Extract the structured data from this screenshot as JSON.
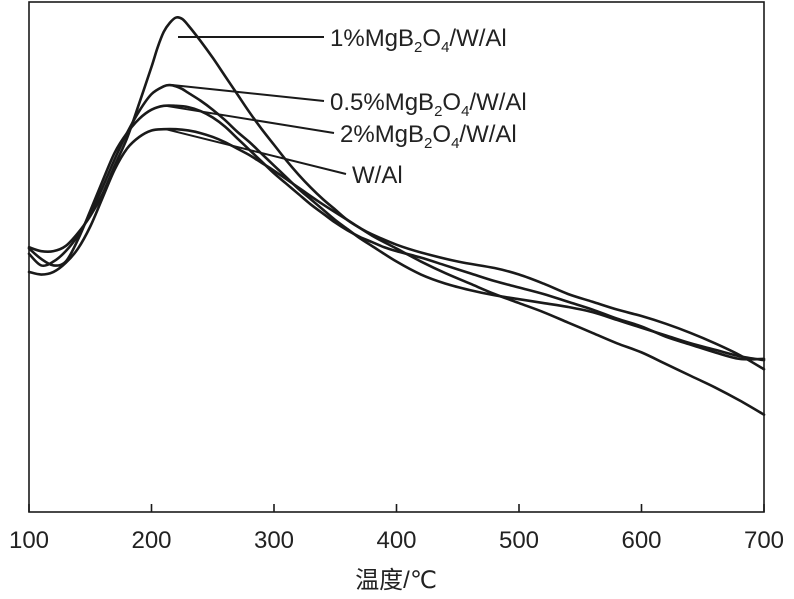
{
  "chart_data": {
    "type": "line",
    "title": "",
    "xlabel": "温度/℃",
    "ylabel": "",
    "xlim": [
      100,
      700
    ],
    "xticks": [
      100,
      200,
      300,
      400,
      500,
      600,
      700
    ],
    "grid": false,
    "y_axis_shown": false,
    "legend_placement": "labels with leader lines at curve peaks",
    "series": [
      {
        "name": "1%MgB2O4/W/Al",
        "label_parts": [
          "1%MgB",
          "2",
          "O",
          "4",
          "/W/Al"
        ],
        "color": "#1a1a1a",
        "x": [
          100,
          110,
          120,
          130,
          140,
          150,
          160,
          170,
          180,
          190,
          200,
          205,
          210,
          215,
          220,
          225,
          230,
          240,
          250,
          260,
          270,
          280,
          290,
          300,
          310,
          320,
          330,
          340,
          350,
          360,
          370,
          380,
          400,
          420,
          450,
          480,
          500,
          520,
          540,
          560,
          580,
          600,
          620,
          640,
          660,
          680,
          700
        ],
        "y": [
          0.09,
          0.06,
          0.06,
          0.1,
          0.2,
          0.33,
          0.5,
          0.72,
          0.93,
          1.2,
          1.48,
          1.63,
          1.75,
          1.82,
          1.86,
          1.85,
          1.8,
          1.68,
          1.55,
          1.41,
          1.27,
          1.13,
          1.0,
          0.88,
          0.76,
          0.65,
          0.55,
          0.46,
          0.38,
          0.3,
          0.24,
          0.19,
          0.11,
          0.05,
          -0.02,
          -0.07,
          -0.12,
          -0.19,
          -0.27,
          -0.33,
          -0.39,
          -0.44,
          -0.5,
          -0.57,
          -0.65,
          -0.74,
          -0.85
        ]
      },
      {
        "name": "0.5%MgB2O4/W/Al",
        "label_parts": [
          "0.5%MgB",
          "2",
          "O",
          "4",
          "/W/Al"
        ],
        "color": "#1a1a1a",
        "x": [
          100,
          110,
          120,
          130,
          140,
          150,
          160,
          170,
          180,
          190,
          200,
          210,
          215,
          220,
          225,
          230,
          240,
          250,
          260,
          270,
          280,
          290,
          300,
          310,
          320,
          330,
          340,
          350,
          360,
          370,
          380,
          400,
          420,
          440,
          460,
          480,
          500,
          520,
          540,
          560,
          580,
          600,
          620,
          640,
          660,
          680,
          700
        ],
        "y": [
          0.04,
          -0.05,
          -0.02,
          0.06,
          0.18,
          0.35,
          0.55,
          0.77,
          0.97,
          1.14,
          1.27,
          1.33,
          1.34,
          1.33,
          1.31,
          1.28,
          1.22,
          1.15,
          1.07,
          0.98,
          0.9,
          0.81,
          0.72,
          0.63,
          0.54,
          0.46,
          0.38,
          0.3,
          0.23,
          0.16,
          0.1,
          -0.02,
          -0.12,
          -0.19,
          -0.24,
          -0.28,
          -0.31,
          -0.34,
          -0.37,
          -0.41,
          -0.47,
          -0.53,
          -0.59,
          -0.65,
          -0.7,
          -0.75,
          -0.78
        ]
      },
      {
        "name": "2%MgB2O4/W/Al",
        "label_parts": [
          "2%MgB",
          "2",
          "O",
          "4",
          "/W/Al"
        ],
        "color": "#1a1a1a",
        "x": [
          100,
          110,
          120,
          130,
          140,
          150,
          160,
          170,
          180,
          190,
          200,
          210,
          220,
          230,
          240,
          250,
          260,
          270,
          280,
          290,
          300,
          310,
          320,
          330,
          340,
          350,
          360,
          370,
          380,
          390,
          400,
          420,
          440,
          460,
          480,
          500,
          520,
          540,
          560,
          580,
          600,
          620,
          640,
          660,
          680,
          700
        ],
        "y": [
          0.08,
          0.0,
          -0.05,
          -0.02,
          0.15,
          0.37,
          0.6,
          0.82,
          0.97,
          1.08,
          1.15,
          1.18,
          1.18,
          1.17,
          1.14,
          1.09,
          1.02,
          0.93,
          0.84,
          0.75,
          0.66,
          0.58,
          0.5,
          0.42,
          0.35,
          0.28,
          0.22,
          0.17,
          0.13,
          0.09,
          0.06,
          0.01,
          -0.05,
          -0.11,
          -0.17,
          -0.22,
          -0.27,
          -0.33,
          -0.39,
          -0.46,
          -0.52,
          -0.6,
          -0.66,
          -0.72,
          -0.77,
          -0.77
        ]
      },
      {
        "name": "W/Al",
        "label_parts": [
          "W/Al"
        ],
        "color": "#1a1a1a",
        "x": [
          100,
          110,
          120,
          130,
          140,
          150,
          160,
          170,
          180,
          190,
          200,
          210,
          220,
          230,
          240,
          250,
          260,
          270,
          280,
          290,
          300,
          320,
          340,
          360,
          380,
          400,
          420,
          440,
          460,
          480,
          500,
          520,
          540,
          560,
          580,
          600,
          620,
          640,
          660,
          680,
          700
        ],
        "y": [
          -0.1,
          -0.12,
          -0.1,
          -0.03,
          0.08,
          0.25,
          0.47,
          0.69,
          0.85,
          0.94,
          0.99,
          1.0,
          1.0,
          0.99,
          0.97,
          0.94,
          0.9,
          0.85,
          0.8,
          0.74,
          0.68,
          0.55,
          0.42,
          0.3,
          0.18,
          0.08,
          -0.02,
          -0.11,
          -0.19,
          -0.27,
          -0.34,
          -0.41,
          -0.49,
          -0.57,
          -0.65,
          -0.72,
          -0.81,
          -0.9,
          -0.99,
          -1.09,
          -1.2
        ]
      }
    ],
    "ylim": [
      -1.95,
      1.98
    ]
  }
}
